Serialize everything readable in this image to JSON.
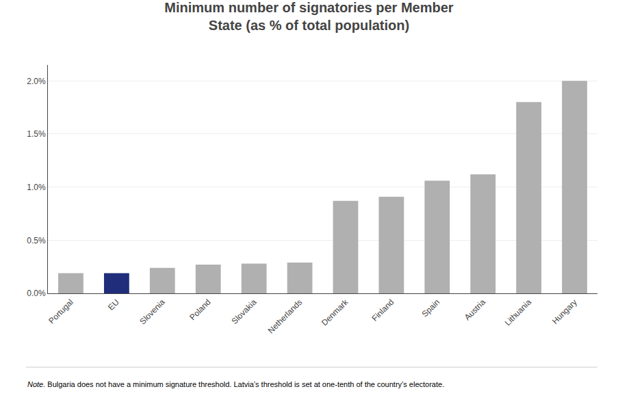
{
  "chart_data": {
    "type": "bar",
    "title": "Minimum number of signatories per Member\nState (as % of total population)",
    "categories": [
      "Portugal",
      "EU",
      "Slovenia",
      "Poland",
      "Slovakia",
      "Netherlands",
      "Denmark",
      "Finland",
      "Spain",
      "Austria",
      "Lithuania",
      "Hungary"
    ],
    "values": [
      0.19,
      0.19,
      0.24,
      0.27,
      0.28,
      0.29,
      0.87,
      0.91,
      1.06,
      1.12,
      1.8,
      2.0
    ],
    "colors": [
      "#b0b0b0",
      "#1f2d7b",
      "#b0b0b0",
      "#b0b0b0",
      "#b0b0b0",
      "#b0b0b0",
      "#b0b0b0",
      "#b0b0b0",
      "#b0b0b0",
      "#b0b0b0",
      "#b0b0b0",
      "#b0b0b0"
    ],
    "ylim": [
      0,
      2.15
    ],
    "yticks": [
      {
        "value": 0.0,
        "label": "0.0%"
      },
      {
        "value": 0.5,
        "label": "0.5%"
      },
      {
        "value": 1.0,
        "label": "1.0%"
      },
      {
        "value": 1.5,
        "label": "1.5%"
      },
      {
        "value": 2.0,
        "label": "2.0%"
      }
    ],
    "grid": true,
    "annotations": [
      "Note.",
      " Bulgaria does not have a minimum signature threshold. Latvia’s threshold is set at one-tenth of the country’s electorate."
    ]
  }
}
